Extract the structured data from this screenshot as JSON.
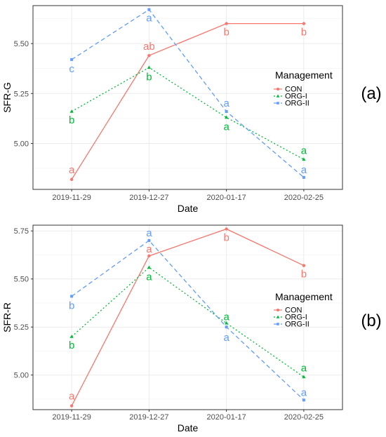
{
  "colors": {
    "CON": "#F8766D",
    "ORG-I": "#00BA38",
    "ORG-II": "#619CFF"
  },
  "chart_data": [
    {
      "type": "line",
      "panel_label": "(a)",
      "xlabel": "Date",
      "ylabel": "SFR-G",
      "categories": [
        "2019-11-29",
        "2019-12-27",
        "2020-01-17",
        "2020-02-25"
      ],
      "yticks": [
        "5.00",
        "5.25",
        "5.50"
      ],
      "ylim": [
        4.77,
        5.69
      ],
      "grid": true,
      "legend": {
        "title": "Management",
        "position": "right"
      },
      "series": [
        {
          "name": "CON",
          "values": [
            4.82,
            5.44,
            5.6,
            5.6
          ],
          "letters": [
            "a",
            "ab",
            "b",
            "b"
          ]
        },
        {
          "name": "ORG-I",
          "values": [
            5.16,
            5.38,
            5.13,
            4.92
          ],
          "letters": [
            "b",
            "b",
            "a",
            "a"
          ]
        },
        {
          "name": "ORG-II",
          "values": [
            5.42,
            5.67,
            5.16,
            4.83
          ],
          "letters": [
            "c",
            "a",
            "a",
            "a"
          ]
        }
      ]
    },
    {
      "type": "line",
      "panel_label": "(b)",
      "xlabel": "Date",
      "ylabel": "SFR-R",
      "categories": [
        "2019-11-29",
        "2019-12-27",
        "2020-01-17",
        "2020-02-25"
      ],
      "yticks": [
        "5.00",
        "5.25",
        "5.50",
        "5.75"
      ],
      "ylim": [
        4.82,
        5.78
      ],
      "grid": true,
      "legend": {
        "title": "Management",
        "position": "right"
      },
      "series": [
        {
          "name": "CON",
          "values": [
            4.84,
            5.62,
            5.76,
            5.57
          ],
          "letters": [
            "a",
            "a",
            "b",
            "b"
          ]
        },
        {
          "name": "ORG-I",
          "values": [
            5.2,
            5.56,
            5.27,
            4.99
          ],
          "letters": [
            "b",
            "a",
            "a",
            "a"
          ]
        },
        {
          "name": "ORG-II",
          "values": [
            5.41,
            5.7,
            5.25,
            4.87
          ],
          "letters": [
            "b",
            "a",
            "a",
            "a"
          ]
        }
      ]
    }
  ]
}
